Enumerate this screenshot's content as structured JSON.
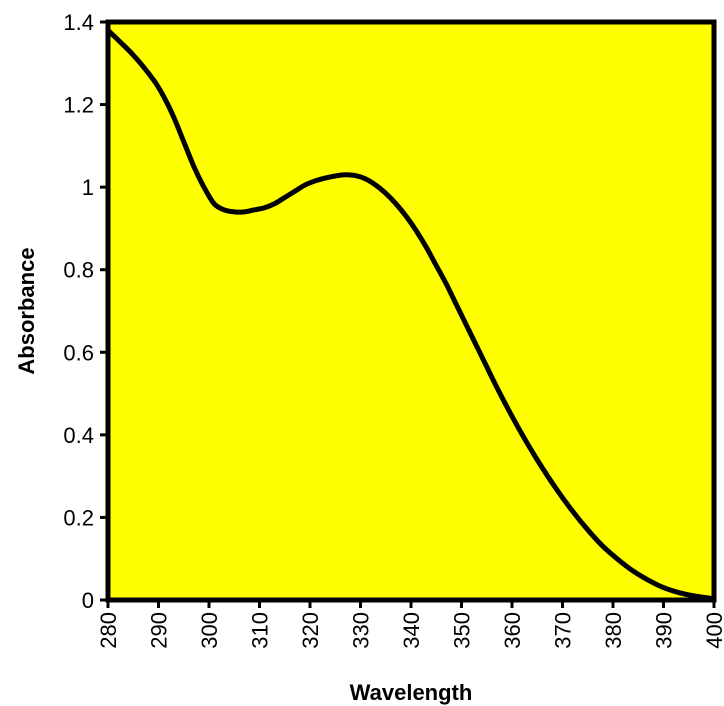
{
  "chart_data": {
    "type": "line",
    "title": "",
    "xlabel": "Wavelength",
    "ylabel": "Absorbance",
    "xlim": [
      280,
      400
    ],
    "ylim": [
      0,
      1.4
    ],
    "x_ticks": [
      "280",
      "290",
      "300",
      "310",
      "320",
      "330",
      "340",
      "350",
      "360",
      "370",
      "380",
      "390",
      "400"
    ],
    "y_ticks": [
      "0",
      "0.2",
      "0.4",
      "0.6",
      "0.8",
      "1",
      "1.2",
      "1.4"
    ],
    "grid": false,
    "legend": "none",
    "plot_background": "#ffff00",
    "line_color": "#000000",
    "series": [
      {
        "x": [
          280,
          285,
          289,
          291,
          293,
          295,
          297,
          299,
          301,
          303,
          305,
          307,
          309,
          311,
          313,
          315,
          317,
          319,
          321,
          323,
          325,
          327,
          329,
          331,
          333,
          335,
          337,
          339,
          341,
          343,
          345,
          347,
          349,
          351,
          353,
          355,
          357,
          360,
          363,
          366,
          369,
          372,
          375,
          378,
          381,
          384,
          387,
          390,
          393,
          396,
          400
        ],
        "y": [
          1.38,
          1.32,
          1.26,
          1.22,
          1.17,
          1.11,
          1.05,
          1.0,
          0.96,
          0.945,
          0.94,
          0.94,
          0.945,
          0.95,
          0.96,
          0.975,
          0.99,
          1.005,
          1.015,
          1.022,
          1.027,
          1.03,
          1.028,
          1.02,
          1.005,
          0.985,
          0.96,
          0.93,
          0.895,
          0.855,
          0.81,
          0.765,
          0.715,
          0.665,
          0.615,
          0.565,
          0.515,
          0.445,
          0.38,
          0.32,
          0.265,
          0.215,
          0.17,
          0.13,
          0.098,
          0.07,
          0.048,
          0.03,
          0.018,
          0.01,
          0.003
        ]
      }
    ]
  }
}
